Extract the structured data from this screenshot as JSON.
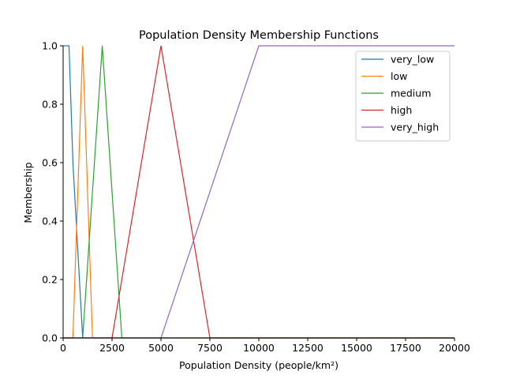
{
  "chart_data": {
    "type": "line",
    "title": "Population Density Membership Functions",
    "xlabel": "Population Density (people/km²)",
    "ylabel": "Membership",
    "xlim": [
      0,
      20000
    ],
    "ylim": [
      0,
      1.0
    ],
    "xticks": [
      "0",
      "2500",
      "5000",
      "7500",
      "10000",
      "12500",
      "15000",
      "17500",
      "20000"
    ],
    "xtick_values": [
      0,
      2500,
      5000,
      7500,
      10000,
      12500,
      15000,
      17500,
      20000
    ],
    "yticks": [
      "0.0",
      "0.2",
      "0.4",
      "0.6",
      "0.8",
      "1.0"
    ],
    "ytick_values": [
      0,
      0.2,
      0.4,
      0.6,
      0.8,
      1.0
    ],
    "grid": false,
    "legend_position": "top-right",
    "series": [
      {
        "name": "very_low",
        "color": "#1f77b4",
        "x": [
          0,
          250,
          300,
          500,
          1000,
          20000
        ],
        "y": [
          1,
          1,
          1,
          0.6,
          0,
          0
        ]
      },
      {
        "name": "low",
        "color": "#ff7f0e",
        "x": [
          0,
          500,
          1000,
          1500,
          20000
        ],
        "y": [
          0,
          0,
          1,
          0,
          0
        ]
      },
      {
        "name": "medium",
        "color": "#2ca02c",
        "x": [
          0,
          1000,
          2000,
          3000,
          20000
        ],
        "y": [
          0,
          0,
          1,
          0,
          0
        ]
      },
      {
        "name": "high",
        "color": "#d62728",
        "x": [
          0,
          2500,
          5000,
          7500,
          20000
        ],
        "y": [
          0,
          0,
          1,
          0,
          0
        ]
      },
      {
        "name": "very_high",
        "color": "#9467bd",
        "x": [
          0,
          5000,
          10000,
          20000
        ],
        "y": [
          0,
          0,
          1,
          1
        ]
      }
    ]
  }
}
